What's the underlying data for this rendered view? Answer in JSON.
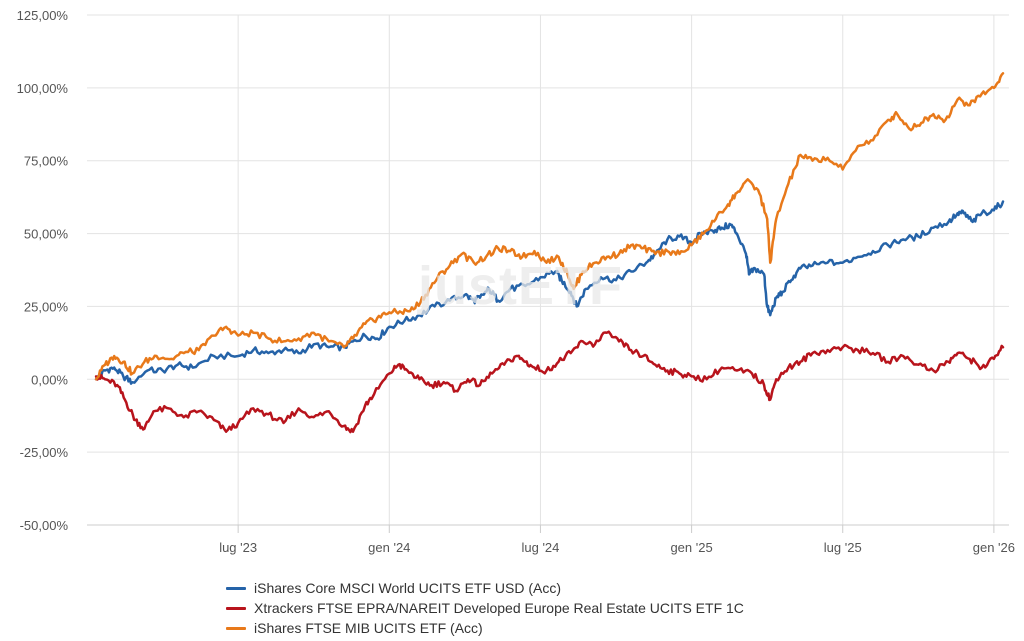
{
  "chart_data": {
    "type": "line",
    "title": "",
    "xlabel": "",
    "ylabel": "",
    "ylim": [
      -50,
      125
    ],
    "y_ticks": [
      {
        "value": -50,
        "label": "-50,00%"
      },
      {
        "value": -25,
        "label": "-25,00%"
      },
      {
        "value": 0,
        "label": "0,00%"
      },
      {
        "value": 25,
        "label": "25,00%"
      },
      {
        "value": 50,
        "label": "50,00%"
      },
      {
        "value": 75,
        "label": "75,00%"
      },
      {
        "value": 100,
        "label": "100,00%"
      },
      {
        "value": 125,
        "label": "125,00%"
      }
    ],
    "x_ticks": [
      {
        "value": 2023.5,
        "label": "lug '23"
      },
      {
        "value": 2024.0,
        "label": "gen '24"
      },
      {
        "value": 2024.5,
        "label": "lug '24"
      },
      {
        "value": 2025.0,
        "label": "gen '25"
      },
      {
        "value": 2025.5,
        "label": "lug '25"
      },
      {
        "value": 2026.0,
        "label": "gen '26"
      }
    ],
    "xlim": [
      2023.0,
      2026.05
    ],
    "grid": true,
    "legend_position": "bottom",
    "watermark": "justETF",
    "series": [
      {
        "name": "iShares Core MSCI World UCITS ETF USD (Acc)",
        "color": "#2563a8",
        "points": [
          [
            2023.03,
            0
          ],
          [
            2023.06,
            3
          ],
          [
            2023.09,
            4
          ],
          [
            2023.12,
            1
          ],
          [
            2023.15,
            -1
          ],
          [
            2023.2,
            3
          ],
          [
            2023.25,
            3
          ],
          [
            2023.3,
            5
          ],
          [
            2023.35,
            4
          ],
          [
            2023.42,
            8
          ],
          [
            2023.5,
            8
          ],
          [
            2023.55,
            10
          ],
          [
            2023.6,
            9
          ],
          [
            2023.65,
            10
          ],
          [
            2023.7,
            9
          ],
          [
            2023.75,
            12
          ],
          [
            2023.8,
            11
          ],
          [
            2023.85,
            11
          ],
          [
            2023.88,
            13
          ],
          [
            2023.92,
            15
          ],
          [
            2023.96,
            14
          ],
          [
            2024.0,
            18
          ],
          [
            2024.05,
            20
          ],
          [
            2024.1,
            22
          ],
          [
            2024.15,
            25
          ],
          [
            2024.2,
            27
          ],
          [
            2024.25,
            29
          ],
          [
            2024.28,
            27
          ],
          [
            2024.3,
            28
          ],
          [
            2024.33,
            31
          ],
          [
            2024.36,
            27
          ],
          [
            2024.4,
            31
          ],
          [
            2024.45,
            32
          ],
          [
            2024.5,
            35
          ],
          [
            2024.55,
            37
          ],
          [
            2024.57,
            34
          ],
          [
            2024.6,
            30
          ],
          [
            2024.62,
            25
          ],
          [
            2024.65,
            31
          ],
          [
            2024.7,
            35
          ],
          [
            2024.75,
            34
          ],
          [
            2024.8,
            37
          ],
          [
            2024.85,
            40
          ],
          [
            2024.88,
            43
          ],
          [
            2024.92,
            48
          ],
          [
            2024.96,
            49
          ],
          [
            2025.0,
            47
          ],
          [
            2025.03,
            50
          ],
          [
            2025.07,
            51
          ],
          [
            2025.1,
            52
          ],
          [
            2025.13,
            53
          ],
          [
            2025.15,
            50
          ],
          [
            2025.18,
            43
          ],
          [
            2025.19,
            36
          ],
          [
            2025.21,
            38
          ],
          [
            2025.24,
            36
          ],
          [
            2025.25,
            25
          ],
          [
            2025.26,
            22
          ],
          [
            2025.28,
            28
          ],
          [
            2025.3,
            30
          ],
          [
            2025.33,
            34
          ],
          [
            2025.36,
            38
          ],
          [
            2025.4,
            39
          ],
          [
            2025.45,
            40
          ],
          [
            2025.5,
            40
          ],
          [
            2025.55,
            42
          ],
          [
            2025.6,
            44
          ],
          [
            2025.65,
            46
          ],
          [
            2025.7,
            48
          ],
          [
            2025.75,
            49
          ],
          [
            2025.8,
            52
          ],
          [
            2025.85,
            54
          ],
          [
            2025.88,
            57
          ],
          [
            2025.9,
            57
          ],
          [
            2025.93,
            54
          ],
          [
            2025.96,
            57
          ],
          [
            2026.0,
            58
          ],
          [
            2026.03,
            61
          ]
        ]
      },
      {
        "name": "Xtrackers FTSE EPRA/NAREIT Developed Europe Real Estate UCITS ETF 1C",
        "color": "#b8141c",
        "points": [
          [
            2023.03,
            1
          ],
          [
            2023.06,
            0
          ],
          [
            2023.1,
            -2
          ],
          [
            2023.13,
            -8
          ],
          [
            2023.16,
            -14
          ],
          [
            2023.19,
            -17
          ],
          [
            2023.22,
            -11
          ],
          [
            2023.27,
            -10
          ],
          [
            2023.32,
            -13
          ],
          [
            2023.37,
            -11
          ],
          [
            2023.42,
            -14
          ],
          [
            2023.46,
            -18
          ],
          [
            2023.5,
            -15
          ],
          [
            2023.55,
            -10
          ],
          [
            2023.6,
            -12
          ],
          [
            2023.65,
            -15
          ],
          [
            2023.7,
            -10
          ],
          [
            2023.75,
            -13
          ],
          [
            2023.8,
            -11
          ],
          [
            2023.85,
            -16
          ],
          [
            2023.88,
            -18
          ],
          [
            2023.92,
            -9
          ],
          [
            2023.95,
            -5
          ],
          [
            2024.0,
            2
          ],
          [
            2024.03,
            5
          ],
          [
            2024.06,
            3
          ],
          [
            2024.1,
            0
          ],
          [
            2024.14,
            -2
          ],
          [
            2024.18,
            -1
          ],
          [
            2024.22,
            -4
          ],
          [
            2024.26,
            0
          ],
          [
            2024.3,
            -2
          ],
          [
            2024.34,
            2
          ],
          [
            2024.38,
            5
          ],
          [
            2024.42,
            8
          ],
          [
            2024.45,
            6
          ],
          [
            2024.48,
            4
          ],
          [
            2024.52,
            3
          ],
          [
            2024.56,
            6
          ],
          [
            2024.6,
            9
          ],
          [
            2024.64,
            13
          ],
          [
            2024.68,
            12
          ],
          [
            2024.72,
            16
          ],
          [
            2024.76,
            13
          ],
          [
            2024.8,
            10
          ],
          [
            2024.84,
            8
          ],
          [
            2024.88,
            5
          ],
          [
            2024.92,
            3
          ],
          [
            2024.96,
            2
          ],
          [
            2025.0,
            1
          ],
          [
            2025.05,
            0
          ],
          [
            2025.1,
            4
          ],
          [
            2025.15,
            3
          ],
          [
            2025.2,
            2
          ],
          [
            2025.24,
            -2
          ],
          [
            2025.26,
            -7
          ],
          [
            2025.28,
            0
          ],
          [
            2025.32,
            4
          ],
          [
            2025.36,
            6
          ],
          [
            2025.4,
            9
          ],
          [
            2025.45,
            10
          ],
          [
            2025.5,
            11
          ],
          [
            2025.55,
            10
          ],
          [
            2025.6,
            9
          ],
          [
            2025.65,
            6
          ],
          [
            2025.7,
            8
          ],
          [
            2025.75,
            5
          ],
          [
            2025.8,
            3
          ],
          [
            2025.85,
            6
          ],
          [
            2025.88,
            9
          ],
          [
            2025.92,
            7
          ],
          [
            2025.96,
            4
          ],
          [
            2026.0,
            7
          ],
          [
            2026.03,
            11
          ]
        ]
      },
      {
        "name": "iShares FTSE MIB UCITS ETF (Acc)",
        "color": "#e8791a",
        "points": [
          [
            2023.03,
            0
          ],
          [
            2023.06,
            5
          ],
          [
            2023.09,
            8
          ],
          [
            2023.12,
            6
          ],
          [
            2023.15,
            2
          ],
          [
            2023.19,
            6
          ],
          [
            2023.23,
            8
          ],
          [
            2023.28,
            7
          ],
          [
            2023.32,
            9
          ],
          [
            2023.37,
            10
          ],
          [
            2023.42,
            15
          ],
          [
            2023.46,
            18
          ],
          [
            2023.5,
            15
          ],
          [
            2023.55,
            16
          ],
          [
            2023.6,
            14
          ],
          [
            2023.65,
            13
          ],
          [
            2023.7,
            14
          ],
          [
            2023.75,
            16
          ],
          [
            2023.8,
            13
          ],
          [
            2023.85,
            11
          ],
          [
            2023.88,
            14
          ],
          [
            2023.92,
            19
          ],
          [
            2023.96,
            21
          ],
          [
            2024.0,
            23
          ],
          [
            2024.04,
            23
          ],
          [
            2024.08,
            24
          ],
          [
            2024.12,
            29
          ],
          [
            2024.16,
            35
          ],
          [
            2024.2,
            39
          ],
          [
            2024.24,
            43
          ],
          [
            2024.28,
            40
          ],
          [
            2024.32,
            42
          ],
          [
            2024.36,
            45
          ],
          [
            2024.4,
            44
          ],
          [
            2024.44,
            42
          ],
          [
            2024.48,
            44
          ],
          [
            2024.52,
            40
          ],
          [
            2024.56,
            42
          ],
          [
            2024.59,
            36
          ],
          [
            2024.61,
            31
          ],
          [
            2024.64,
            37
          ],
          [
            2024.68,
            40
          ],
          [
            2024.72,
            42
          ],
          [
            2024.76,
            43
          ],
          [
            2024.8,
            46
          ],
          [
            2024.84,
            45
          ],
          [
            2024.88,
            43
          ],
          [
            2024.92,
            44
          ],
          [
            2024.96,
            43
          ],
          [
            2025.0,
            46
          ],
          [
            2025.04,
            50
          ],
          [
            2025.08,
            55
          ],
          [
            2025.12,
            60
          ],
          [
            2025.15,
            64
          ],
          [
            2025.18,
            68
          ],
          [
            2025.22,
            65
          ],
          [
            2025.25,
            55
          ],
          [
            2025.26,
            40
          ],
          [
            2025.28,
            55
          ],
          [
            2025.32,
            67
          ],
          [
            2025.36,
            77
          ],
          [
            2025.4,
            75
          ],
          [
            2025.45,
            76
          ],
          [
            2025.5,
            72
          ],
          [
            2025.55,
            80
          ],
          [
            2025.6,
            82
          ],
          [
            2025.65,
            89
          ],
          [
            2025.68,
            91
          ],
          [
            2025.72,
            86
          ],
          [
            2025.76,
            88
          ],
          [
            2025.8,
            91
          ],
          [
            2025.84,
            89
          ],
          [
            2025.88,
            96
          ],
          [
            2025.92,
            94
          ],
          [
            2025.96,
            98
          ],
          [
            2026.0,
            100
          ],
          [
            2026.03,
            105
          ]
        ]
      }
    ]
  }
}
